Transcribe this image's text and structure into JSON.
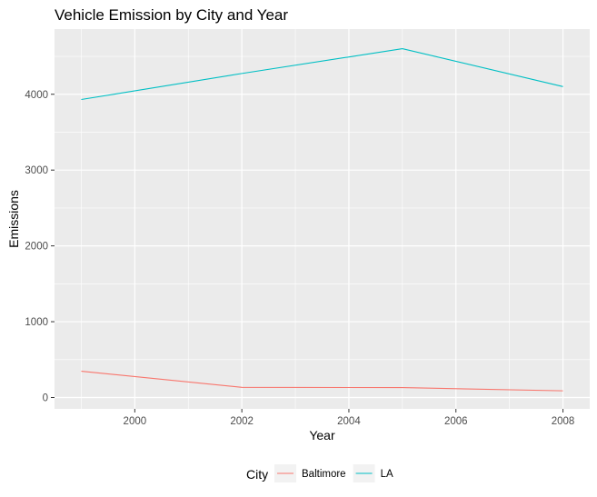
{
  "chart_data": {
    "type": "line",
    "title": "Vehicle Emission by City and Year",
    "xlabel": "Year",
    "ylabel": "Emissions",
    "x": [
      1999,
      2002,
      2005,
      2008
    ],
    "xlim": [
      1998.5,
      2008.5
    ],
    "ylim": [
      -150,
      4860
    ],
    "xticks": [
      2000,
      2002,
      2004,
      2006,
      2008
    ],
    "yticks": [
      0,
      1000,
      2000,
      3000,
      4000
    ],
    "grid": true,
    "legend": {
      "title": "City",
      "position": "bottom"
    },
    "series": [
      {
        "name": "Baltimore",
        "color": "#F8766D",
        "values": [
          346.8,
          134.3,
          130.4,
          88.3
        ]
      },
      {
        "name": "LA",
        "color": "#00BFC4",
        "values": [
          3931.1,
          4274.0,
          4601.4,
          4101.3
        ]
      }
    ]
  }
}
